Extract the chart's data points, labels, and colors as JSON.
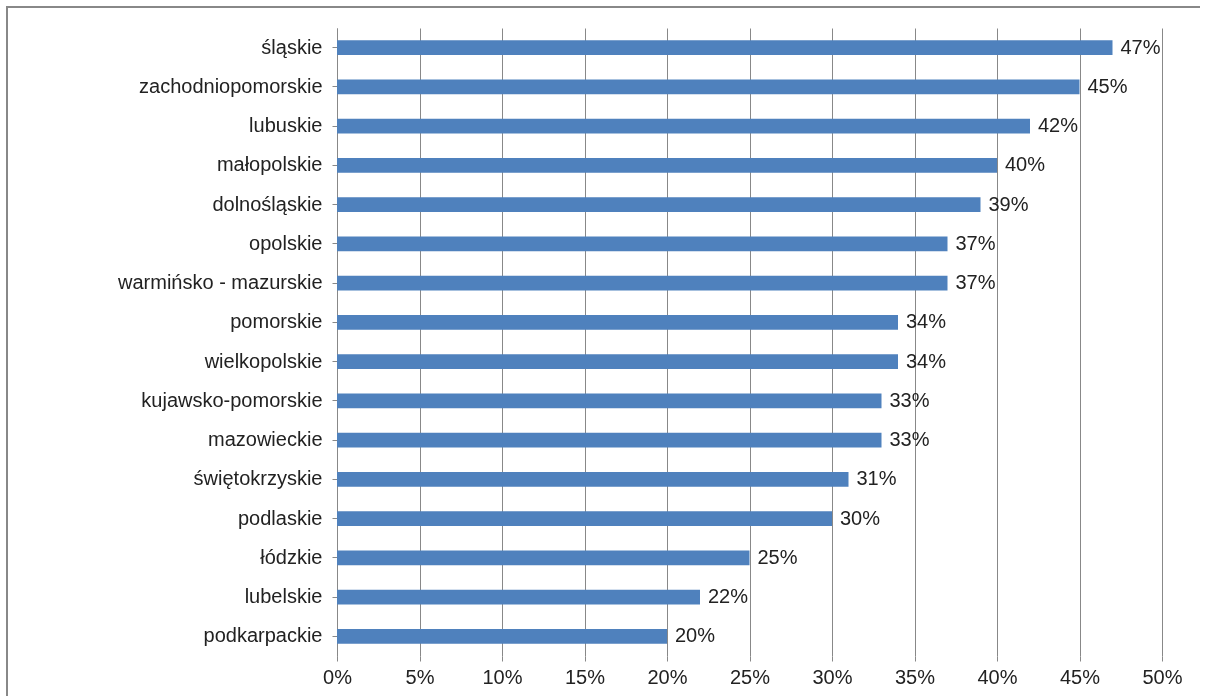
{
  "chart_data": {
    "type": "bar",
    "orientation": "horizontal",
    "categories": [
      "śląskie",
      "zachodniopomorskie",
      "lubuskie",
      "małopolskie",
      "dolnośląskie",
      "opolskie",
      "warmińsko - mazurskie",
      "pomorskie",
      "wielkopolskie",
      "kujawsko-pomorskie",
      "mazowieckie",
      "świętokrzyskie",
      "podlaskie",
      "łódzkie",
      "lubelskie",
      "podkarpackie"
    ],
    "values": [
      47,
      45,
      42,
      40,
      39,
      37,
      37,
      34,
      34,
      33,
      33,
      31,
      30,
      25,
      22,
      20
    ],
    "value_labels": [
      "47%",
      "45%",
      "42%",
      "40%",
      "39%",
      "37%",
      "37%",
      "34%",
      "34%",
      "33%",
      "33%",
      "31%",
      "30%",
      "25%",
      "22%",
      "20%"
    ],
    "color": "#4f81bd",
    "xlim": [
      0,
      50
    ],
    "xticks": [
      {
        "value": 0,
        "label": "0%"
      },
      {
        "value": 5,
        "label": "5%"
      },
      {
        "value": 10,
        "label": "10%"
      },
      {
        "value": 15,
        "label": "15%"
      },
      {
        "value": 20,
        "label": "20%"
      },
      {
        "value": 25,
        "label": "25%"
      },
      {
        "value": 30,
        "label": "30%"
      },
      {
        "value": 35,
        "label": "35%"
      },
      {
        "value": 40,
        "label": "40%"
      },
      {
        "value": 45,
        "label": "45%"
      },
      {
        "value": 50,
        "label": "50%"
      }
    ],
    "grid": "x"
  }
}
